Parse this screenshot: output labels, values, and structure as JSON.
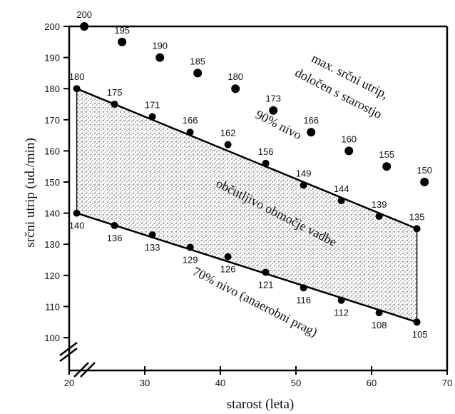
{
  "chart_data": {
    "type": "scatter",
    "title": "",
    "xlabel": "starost (leta)",
    "ylabel": "srčni utrip (ud./min)",
    "xlim": [
      20,
      70
    ],
    "ylim": [
      100,
      200
    ],
    "x_ticks": [
      20,
      30,
      40,
      50,
      60,
      70
    ],
    "y_ticks": [
      100,
      110,
      120,
      130,
      140,
      150,
      160,
      170,
      180,
      190,
      200
    ],
    "x_tick_labels": [
      "20",
      "30",
      "40",
      "50",
      "60",
      "70"
    ],
    "y_tick_labels": [
      "100",
      "110",
      "120",
      "130",
      "140",
      "150",
      "160",
      "170",
      "180",
      "190",
      "200"
    ],
    "grid": false,
    "series": [
      {
        "name": "max. srčni utrip, določen s starostjo",
        "x": [
          22,
          27,
          32,
          37,
          42,
          47,
          52,
          57,
          62,
          67
        ],
        "y": [
          200,
          195,
          190,
          185,
          180,
          173,
          166,
          160,
          155,
          150
        ],
        "labels": [
          "200",
          "195",
          "190",
          "185",
          "180",
          "173",
          "166",
          "160",
          "155",
          "150"
        ]
      },
      {
        "name": "90% nivo",
        "x": [
          21,
          26,
          31,
          36,
          41,
          46,
          51,
          56,
          61,
          66
        ],
        "y": [
          180,
          175,
          171,
          166,
          162,
          156,
          149,
          144,
          139,
          135
        ],
        "labels": [
          "180",
          "175",
          "171",
          "166",
          "162",
          "156",
          "149",
          "144",
          "139",
          "135"
        ]
      },
      {
        "name": "70% nivo (anaerobni prag)",
        "x": [
          21,
          26,
          31,
          36,
          41,
          46,
          51,
          56,
          61,
          66
        ],
        "y": [
          140,
          136,
          133,
          129,
          126,
          121,
          116,
          112,
          108,
          105
        ],
        "labels": [
          "140",
          "136",
          "133",
          "129",
          "126",
          "121",
          "116",
          "112",
          "108",
          "105"
        ]
      }
    ],
    "annotations": {
      "max_line1": "max. srčni utrip,",
      "max_line2": "določen s starostjo",
      "level90": "90% nivo",
      "zone": "občutljivo območje vadbe",
      "level70": "70% nivo (anaerobni prag)"
    },
    "zone_fill": "stippled"
  }
}
